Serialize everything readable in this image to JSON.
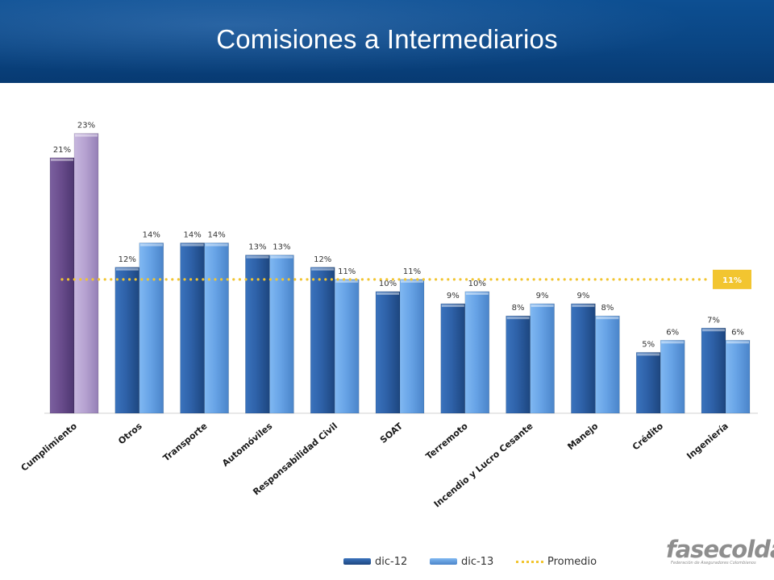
{
  "slide": {
    "title": "Comisiones a Intermediarios"
  },
  "chart_data": {
    "type": "bar",
    "categories": [
      "Cumplimiento",
      "Otros",
      "Transporte",
      "Automóviles",
      "Responsabilidad Civil",
      "SOAT",
      "Terremoto",
      "Incendio y Lucro Cesante",
      "Manejo",
      "Crédito",
      "Ingeniería"
    ],
    "series": [
      {
        "name": "dic-12",
        "values": [
          21,
          12,
          14,
          13,
          12,
          10,
          9,
          8,
          9,
          5,
          7
        ],
        "labels": [
          "21%",
          "12%",
          "14%",
          "13%",
          "12%",
          "10%",
          "9%",
          "8%",
          "9%",
          "5%",
          "7%"
        ]
      },
      {
        "name": "dic-13",
        "values": [
          23,
          14,
          14,
          13,
          11,
          11,
          10,
          9,
          8,
          6,
          6
        ],
        "labels": [
          "23%",
          "14%",
          "14%",
          "13%",
          "11%",
          "11%",
          "10%",
          "9%",
          "8%",
          "6%",
          "6%"
        ]
      }
    ],
    "reference_line": {
      "name": "Promedio",
      "value": 11,
      "label": "11%"
    },
    "ylim": [
      0,
      24
    ],
    "grid": false,
    "legend_position": "bottom",
    "highlight_first_category": true
  },
  "colors": {
    "header_bg": "#0a4583",
    "dic12": "#2f62a8",
    "dic13": "#6aa6e8",
    "dic12_highlight": "#6b4f8f",
    "dic13_highlight": "#b7a4d2",
    "promedio": "#f2c530"
  },
  "logo": {
    "text": "fasecolda",
    "subtitle": "Federación de Aseguradores Colombianos"
  }
}
